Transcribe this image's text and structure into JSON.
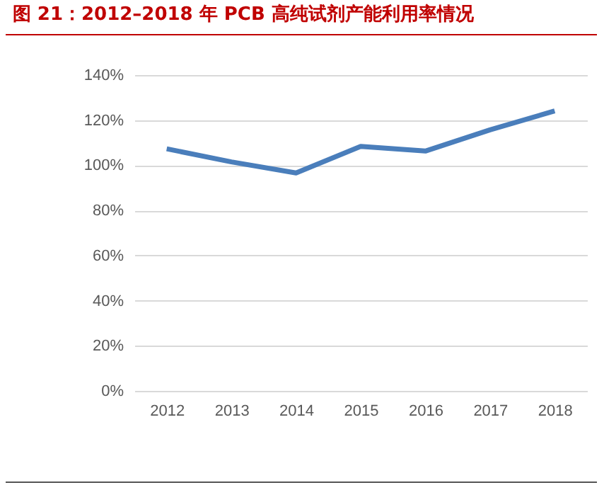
{
  "chart_data": {
    "type": "line",
    "title": "图 21：2012–2018 年 PCB 高纯试剂产能利用率情况",
    "categories": [
      "2012",
      "2013",
      "2014",
      "2015",
      "2016",
      "2017",
      "2018"
    ],
    "series": [
      {
        "color": "#4a7ebb",
        "values": [
          107.3,
          101.5,
          96.6,
          108.4,
          106.3,
          115.7,
          124.1
        ]
      }
    ],
    "ylim": [
      0,
      140
    ],
    "yticks": [
      {
        "value": 0,
        "label": "0%"
      },
      {
        "value": 20,
        "label": "20%"
      },
      {
        "value": 40,
        "label": "40%"
      },
      {
        "value": 60,
        "label": "60%"
      },
      {
        "value": 80,
        "label": "80%"
      },
      {
        "value": 100,
        "label": "100%"
      },
      {
        "value": 120,
        "label": "120%"
      },
      {
        "value": 140,
        "label": "140%"
      }
    ],
    "grid": "y",
    "legend": false,
    "marker": "none",
    "line_style": "solid"
  }
}
